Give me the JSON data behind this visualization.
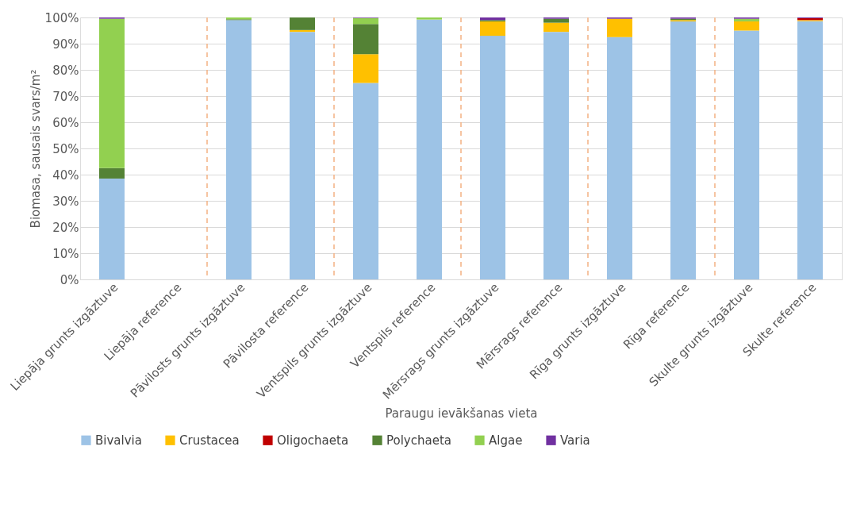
{
  "chart_data": {
    "type": "bar",
    "stacked": true,
    "xlabel": "Paraugu ievākšanas vieta",
    "ylabel": "Biomasa, sausais svars/m²",
    "categories": [
      "Liepāja grunts izgāztuve",
      "Liepāja reference",
      "Pāvilosts grunts izgāztuve",
      "Pāvilosta reference",
      "Ventspils grunts izgāztuve",
      "Ventspils reference",
      "Mērsrags grunts izgāztuve",
      "Mērsrags reference",
      "Rīga grunts izgāztuve",
      "Rīga reference",
      "Skulte grunts izgāztuve",
      "Skulte reference"
    ],
    "series": [
      {
        "name": "Bivalvia",
        "color": "#9dc3e6",
        "values": [
          38.5,
          null,
          99,
          94.5,
          75,
          99.2,
          93,
          94.5,
          92.5,
          98.5,
          95,
          98.6
        ]
      },
      {
        "name": "Crustacea",
        "color": "#ffc000",
        "values": [
          0,
          null,
          0,
          0.7,
          11,
          0,
          5.5,
          3.5,
          7,
          0.5,
          3.5,
          0.4
        ]
      },
      {
        "name": "Oligochaeta",
        "color": "#c00000",
        "values": [
          0,
          null,
          0,
          0,
          0,
          0,
          0,
          0,
          0,
          0,
          0,
          0.7
        ]
      },
      {
        "name": "Polychaeta",
        "color": "#548235",
        "values": [
          4,
          null,
          0.3,
          4.8,
          11.5,
          0,
          0.5,
          1.5,
          0,
          0.5,
          0,
          0
        ]
      },
      {
        "name": "Algae",
        "color": "#92d050",
        "values": [
          57,
          null,
          0.7,
          0,
          2.3,
          0.8,
          0,
          0,
          0,
          0,
          1,
          0
        ]
      },
      {
        "name": "Varia",
        "color": "#7030a0",
        "values": [
          0.5,
          null,
          0,
          0,
          0.2,
          0,
          1,
          0.5,
          0.5,
          0.5,
          0.5,
          0.3
        ]
      }
    ],
    "ylim": [
      0,
      100
    ],
    "yticks": [
      {
        "value": 0,
        "label": "0%"
      },
      {
        "value": 10,
        "label": "10%"
      },
      {
        "value": 20,
        "label": "20%"
      },
      {
        "value": 30,
        "label": "30%"
      },
      {
        "value": 40,
        "label": "40%"
      },
      {
        "value": 50,
        "label": "50%"
      },
      {
        "value": 60,
        "label": "60%"
      },
      {
        "value": 70,
        "label": "70%"
      },
      {
        "value": 80,
        "label": "80%"
      },
      {
        "value": 90,
        "label": "90%"
      },
      {
        "value": 100,
        "label": "100%"
      }
    ],
    "grid": "y",
    "legend": "bottom"
  }
}
